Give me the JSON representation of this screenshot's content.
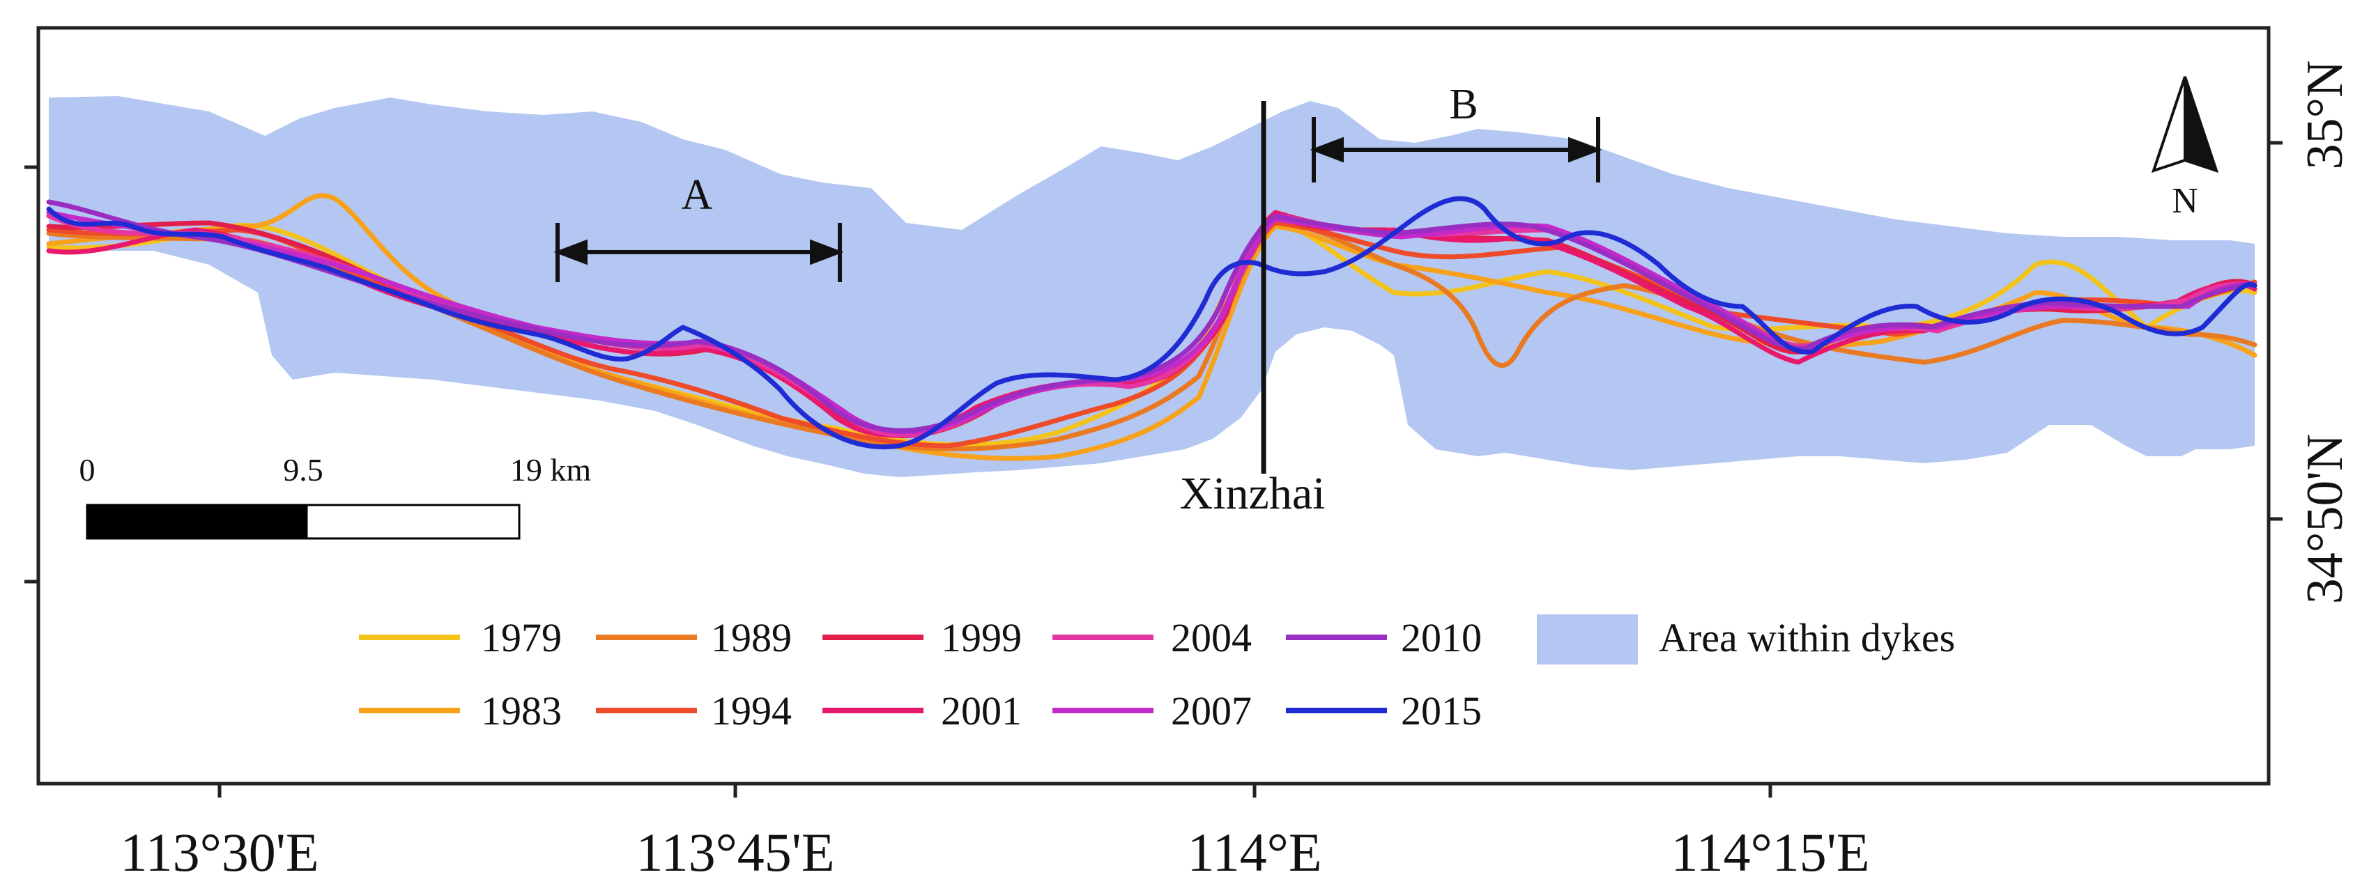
{
  "figure": {
    "lon_ticks": [
      "113°30'E",
      "113°45'E",
      "114°E",
      "114°15'E"
    ],
    "lat_ticks": [
      "35°N",
      "34°50'N"
    ],
    "annotations": {
      "a": "A",
      "b": "B",
      "town": "Xinzhai"
    },
    "north_arrow": {
      "label": "N",
      "icon": "north-arrow-icon"
    },
    "scale_bar": {
      "ticks": [
        "0",
        "9.5",
        "19 km"
      ]
    },
    "legend": {
      "items": [
        {
          "year": "1979",
          "color": "#f3c31c"
        },
        {
          "year": "1989",
          "color": "#ea7a22"
        },
        {
          "year": "1999",
          "color": "#e21e4a"
        },
        {
          "year": "2004",
          "color": "#e535a3"
        },
        {
          "year": "2010",
          "color": "#9a2ec3"
        },
        {
          "year": "1983",
          "color": "#f7a21a"
        },
        {
          "year": "1994",
          "color": "#ee4b2b"
        },
        {
          "year": "2001",
          "color": "#e8196c"
        },
        {
          "year": "2007",
          "color": "#c42ac9"
        },
        {
          "year": "2015",
          "color": "#1f2bd3"
        }
      ],
      "area_label": "Area within dykes",
      "area_color": "#b4c7f2"
    }
  }
}
